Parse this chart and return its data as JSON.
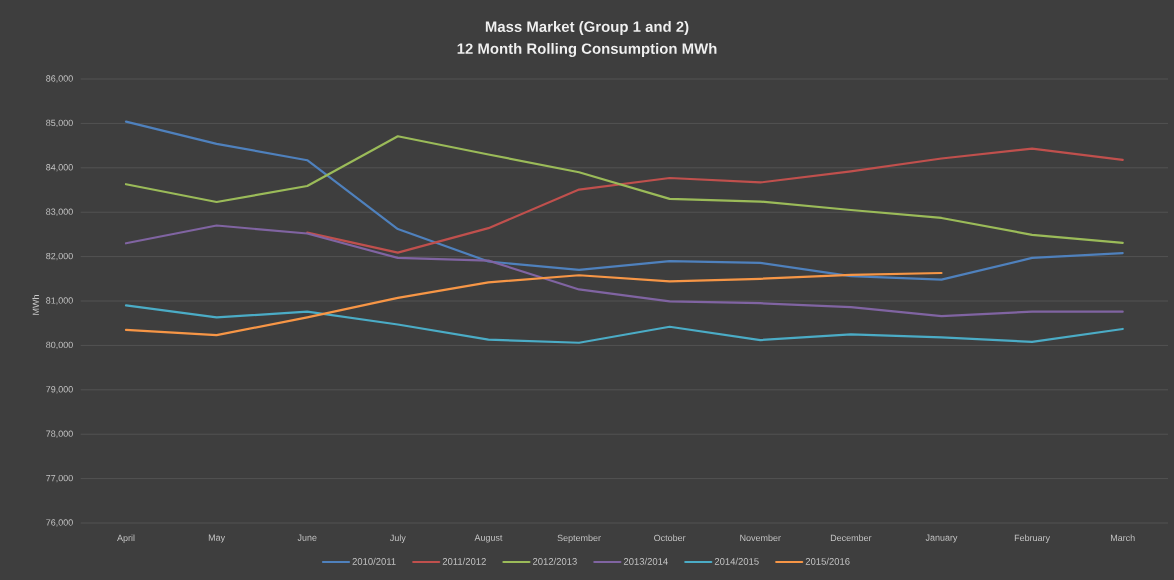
{
  "chart_data": {
    "type": "line",
    "title": "Mass Market (Group 1 and 2)",
    "subtitle": "12 Month Rolling Consumption MWh",
    "ylabel": "MWh",
    "categories": [
      "April",
      "May",
      "June",
      "July",
      "August",
      "September",
      "October",
      "November",
      "December",
      "January",
      "February",
      "March"
    ],
    "series": [
      {
        "name": "2010/2011",
        "color": "#4f81bd",
        "values": [
          85040,
          84540,
          84170,
          82620,
          81890,
          81700,
          81900,
          81860,
          81560,
          81480,
          81970,
          82080
        ]
      },
      {
        "name": "2011/2012",
        "color": "#c0504d",
        "values": [
          null,
          null,
          82540,
          82090,
          82640,
          83510,
          83770,
          83670,
          83920,
          84210,
          84430,
          84180
        ]
      },
      {
        "name": "2012/2013",
        "color": "#9bbb59",
        "values": [
          83630,
          83230,
          83590,
          84710,
          84300,
          83900,
          83300,
          83240,
          83050,
          82870,
          82490,
          82310
        ]
      },
      {
        "name": "2013/2014",
        "color": "#8064a2",
        "values": [
          82300,
          82700,
          82520,
          81970,
          81910,
          81260,
          80990,
          80950,
          80860,
          80660,
          80760,
          80760
        ]
      },
      {
        "name": "2014/2015",
        "color": "#4bacc6",
        "values": [
          80900,
          80630,
          80760,
          80470,
          80130,
          80060,
          80420,
          80120,
          80250,
          80180,
          80080,
          80370
        ]
      },
      {
        "name": "2015/2016",
        "color": "#f79646",
        "values": [
          80350,
          80230,
          80630,
          81070,
          81420,
          81580,
          81440,
          81500,
          81590,
          81630,
          null,
          null
        ]
      }
    ],
    "ylim": [
      76000,
      86000
    ],
    "yticks": [
      {
        "value": 76000,
        "label": "76,000"
      },
      {
        "value": 77000,
        "label": "77,000"
      },
      {
        "value": 78000,
        "label": "78,000"
      },
      {
        "value": 79000,
        "label": "79,000"
      },
      {
        "value": 80000,
        "label": "80,000"
      },
      {
        "value": 81000,
        "label": "81,000"
      },
      {
        "value": 82000,
        "label": "82,000"
      },
      {
        "value": 83000,
        "label": "83,000"
      },
      {
        "value": 84000,
        "label": "84,000"
      },
      {
        "value": 85000,
        "label": "85,000"
      },
      {
        "value": 86000,
        "label": "86,000"
      }
    ],
    "grid": "y",
    "legend": "bottom"
  }
}
